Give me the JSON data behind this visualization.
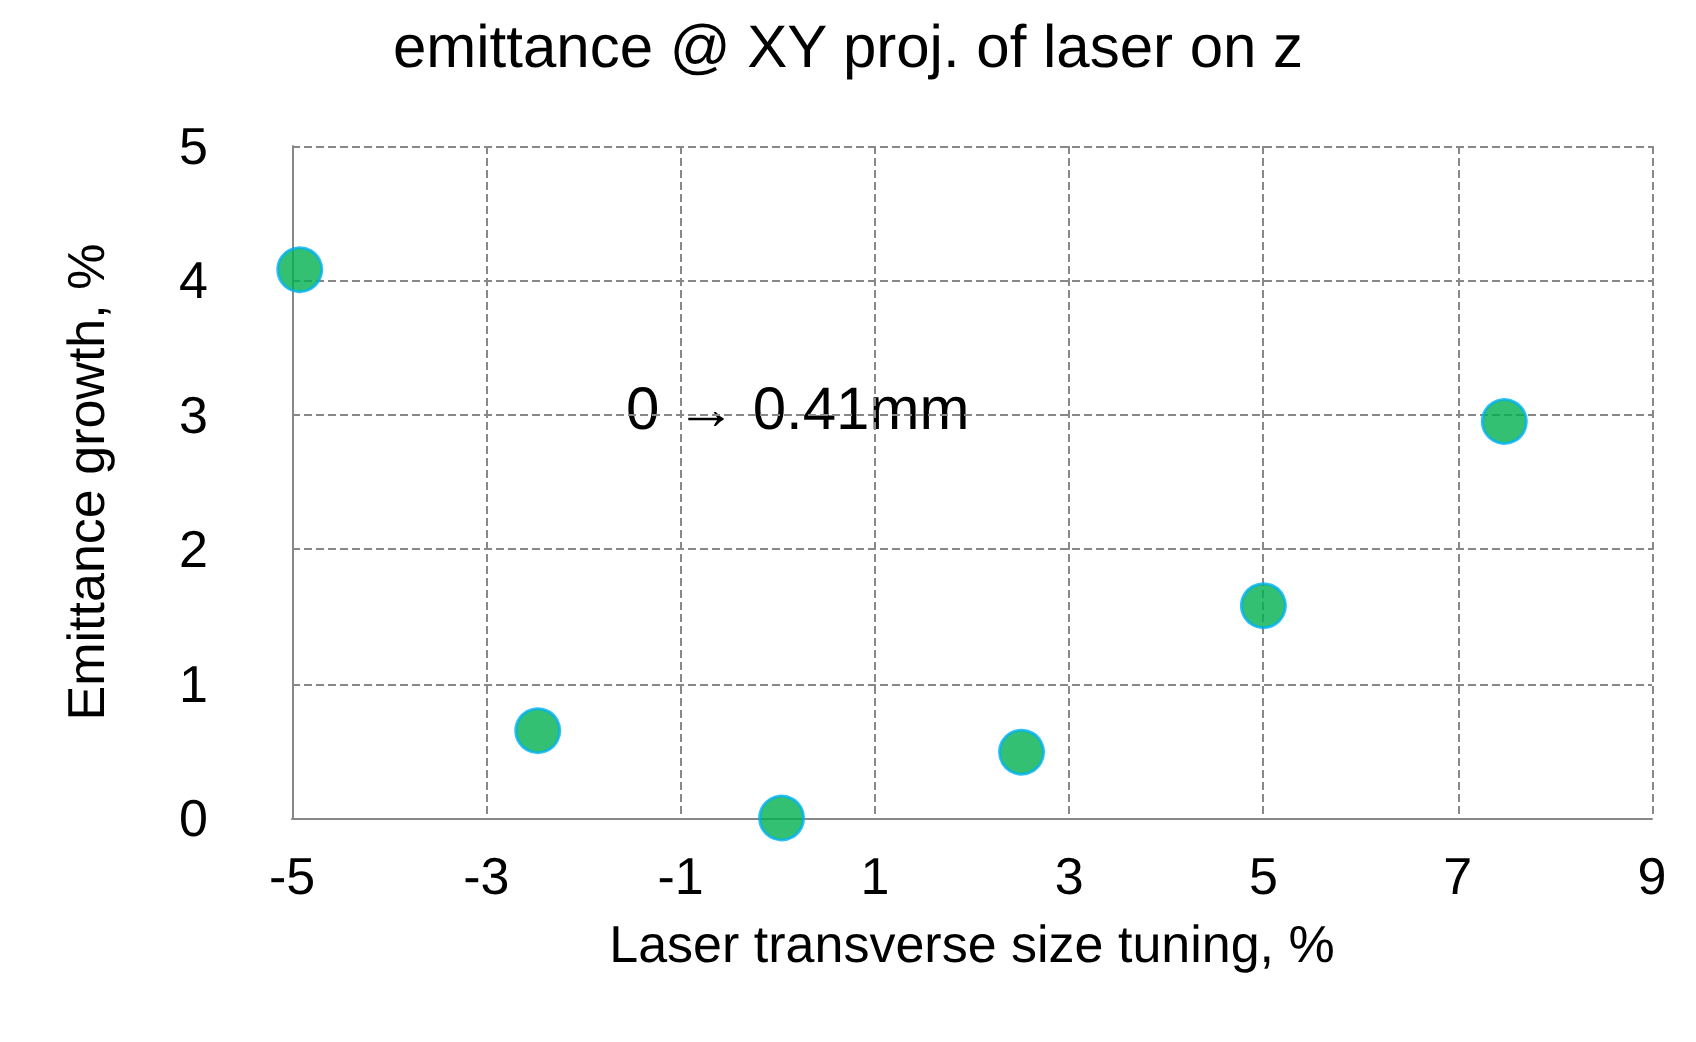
{
  "chart_data": {
    "type": "scatter",
    "title": "emittance @ XY proj. of laser on z",
    "xlabel": "Laser transverse size tuning, %",
    "ylabel": "Emittance growth, %",
    "x": [
      -4.92,
      -2.47,
      0.04,
      2.51,
      5.0,
      7.48
    ],
    "series": [
      {
        "color": "#00b050",
        "values": [
          4.08,
          0.65,
          0.0,
          0.49,
          1.58,
          2.95
        ]
      }
    ],
    "xlim": [
      -5,
      9
    ],
    "xticks": [
      -5,
      -3,
      -1,
      1,
      3,
      5,
      7,
      9
    ],
    "ylim": [
      0,
      5
    ],
    "yticks": [
      0,
      1,
      2,
      3,
      4,
      5
    ],
    "grid": true,
    "marker": "circle",
    "annotations": [
      "0 → 0.41mm"
    ]
  }
}
